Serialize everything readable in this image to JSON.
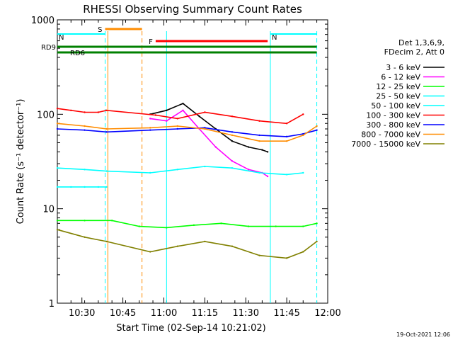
{
  "chart_data": {
    "type": "line",
    "title": "RHESSI Observing Summary Count Rates",
    "xlabel": "Start Time (02-Sep-14 10:21:02)",
    "ylabel": "Count Rate (s⁻¹ detector⁻¹)",
    "yscale": "log",
    "ylim": [
      1,
      1000
    ],
    "xlim_minutes": [
      0,
      99
    ],
    "x_ticks": [
      "10:30",
      "10:45",
      "11:00",
      "11:15",
      "11:30",
      "11:45",
      "12:00"
    ],
    "x_tick_minutes": [
      9,
      24,
      39,
      54,
      69,
      84,
      99
    ],
    "y_ticks": [
      "1",
      "10",
      "100",
      "1000"
    ],
    "y_tick_values": [
      1,
      10,
      100,
      1000
    ],
    "footer_date": "19-Oct-2021 12:06",
    "legend_header": [
      "Det 1,3,6,9,",
      "FDecim 2, Att 0"
    ],
    "legend_position": "right",
    "flags": [
      {
        "label": "S",
        "color": "#ff8c00",
        "start": 17.5,
        "end": 31
      },
      {
        "label": "N",
        "color": "#00ffff",
        "start": 0,
        "end": 17.5
      },
      {
        "label": "N",
        "color": "#00ffff",
        "start": 78,
        "end": 95
      },
      {
        "label": "F",
        "color": "#ff0000",
        "start": 36,
        "end": 77
      },
      {
        "label": "RD9",
        "color": "#008000",
        "start": 0,
        "end": 95
      },
      {
        "label": "RD6",
        "color": "#008000",
        "start": 0,
        "end": 95
      }
    ],
    "markers": [
      {
        "minute": 17.5,
        "color": "#00ffff",
        "style": "dashed"
      },
      {
        "minute": 18.5,
        "color": "#ff8c00",
        "style": "solid"
      },
      {
        "minute": 31,
        "color": "#ff8c00",
        "style": "dashed"
      },
      {
        "minute": 40,
        "color": "#00ffff",
        "style": "solid"
      },
      {
        "minute": 78,
        "color": "#00ffff",
        "style": "solid"
      },
      {
        "minute": 95,
        "color": "#00ffff",
        "style": "dashed"
      }
    ],
    "series": [
      {
        "name": "3 - 6 keV",
        "color": "#000000",
        "x": [
          34,
          40,
          46,
          52,
          58,
          64,
          70,
          75,
          77
        ],
        "y": [
          100,
          110,
          130,
          95,
          70,
          52,
          45,
          42,
          40
        ]
      },
      {
        "name": "6 - 12 keV",
        "color": "#ff00ff",
        "x": [
          34,
          40,
          46,
          52,
          58,
          64,
          70,
          75,
          77
        ],
        "y": [
          90,
          85,
          110,
          70,
          45,
          32,
          26,
          24,
          22
        ]
      },
      {
        "name": "12 - 25 keV",
        "color": "#00ff00",
        "x": [
          0,
          10,
          20,
          30,
          40,
          50,
          60,
          70,
          80,
          90,
          95
        ],
        "y": [
          7.5,
          7.5,
          7.5,
          6.5,
          6.3,
          6.7,
          7.0,
          6.5,
          6.5,
          6.5,
          7.0
        ]
      },
      {
        "name": "25 - 50 keV",
        "color": "#00ffff",
        "x": [
          0,
          10,
          18,
          34,
          44,
          54,
          64,
          74,
          84,
          90
        ],
        "y": [
          27,
          26,
          25,
          24,
          26,
          28,
          27,
          24,
          23,
          24
        ]
      },
      {
        "name": "50 - 100 keV",
        "color": "#00ffff",
        "x": [
          0,
          5,
          10,
          15,
          18
        ],
        "y": [
          17,
          17,
          17,
          17,
          17
        ]
      },
      {
        "name": "100 - 300 keV",
        "color": "#ff0000",
        "x": [
          0,
          5,
          10,
          15,
          18,
          36,
          44,
          54,
          64,
          74,
          84,
          90
        ],
        "y": [
          115,
          110,
          105,
          105,
          110,
          98,
          90,
          105,
          95,
          85,
          80,
          100
        ]
      },
      {
        "name": "300 - 800 keV",
        "color": "#0000ff",
        "x": [
          0,
          10,
          18,
          34,
          44,
          54,
          64,
          74,
          84,
          90,
          95
        ],
        "y": [
          70,
          68,
          65,
          68,
          70,
          72,
          65,
          60,
          58,
          62,
          68
        ]
      },
      {
        "name": "800 - 7000 keV",
        "color": "#ff8c00",
        "x": [
          0,
          10,
          18,
          34,
          44,
          54,
          64,
          74,
          84,
          90,
          95
        ],
        "y": [
          80,
          75,
          70,
          72,
          75,
          70,
          60,
          52,
          52,
          60,
          75
        ]
      },
      {
        "name": "7000 - 15000 keV",
        "color": "#808000",
        "x": [
          0,
          10,
          18,
          34,
          44,
          54,
          64,
          74,
          84,
          90,
          95
        ],
        "y": [
          6,
          5,
          4.5,
          3.5,
          4.0,
          4.5,
          4.0,
          3.2,
          3.0,
          3.5,
          4.5
        ]
      }
    ]
  }
}
